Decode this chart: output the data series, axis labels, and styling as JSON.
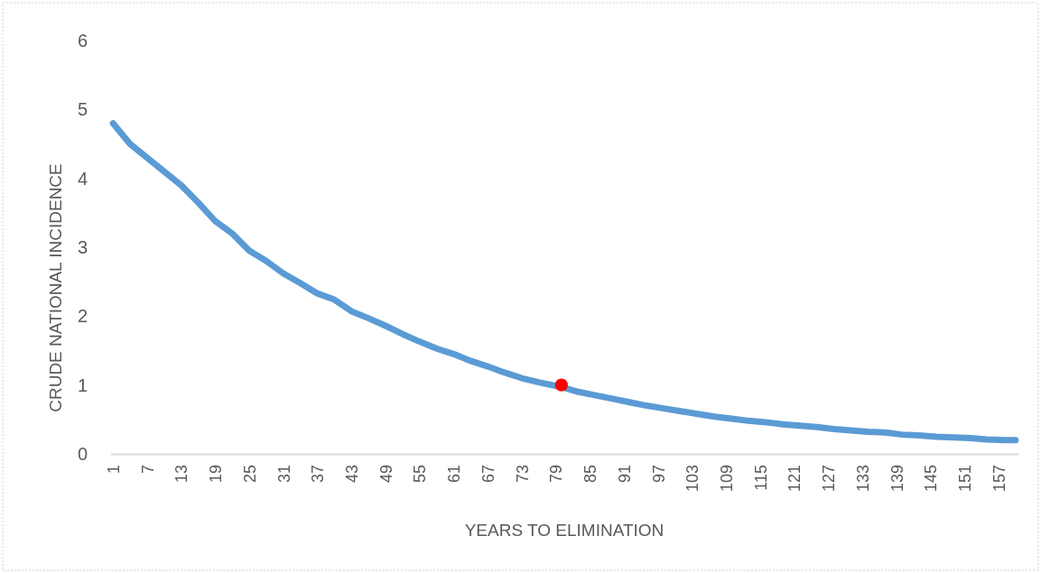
{
  "chart_data": {
    "type": "line",
    "xlabel": "YEARS TO ELIMINATION",
    "ylabel": "CRUDE NATIONAL INCIDENCE",
    "xlim": [
      0.5,
      160.5
    ],
    "xticks": [
      1,
      7,
      13,
      19,
      25,
      31,
      37,
      43,
      49,
      55,
      61,
      67,
      73,
      79,
      85,
      91,
      97,
      103,
      109,
      115,
      121,
      127,
      133,
      139,
      145,
      151,
      157
    ],
    "ylim": [
      0,
      6
    ],
    "yticks": [
      0,
      1,
      2,
      3,
      4,
      5,
      6
    ],
    "series": [
      {
        "color": "#5b9bd5",
        "marker": "none",
        "line_style": "solid",
        "x": [
          1,
          2,
          4,
          7,
          10,
          13,
          16,
          19,
          22,
          25,
          28,
          31,
          34,
          37,
          40,
          43,
          46,
          49,
          52,
          55,
          58,
          61,
          64,
          67,
          70,
          73,
          76,
          80,
          83,
          86,
          89,
          92,
          95,
          98,
          101,
          104,
          107,
          110,
          113,
          116,
          119,
          122,
          125,
          128,
          131,
          134,
          137,
          140,
          143,
          146,
          149,
          152,
          155,
          158,
          160
        ],
        "values": [
          4.8,
          4.7,
          4.5,
          4.3,
          4.1,
          3.9,
          3.65,
          3.38,
          3.2,
          2.95,
          2.8,
          2.62,
          2.48,
          2.33,
          2.24,
          2.07,
          1.97,
          1.86,
          1.74,
          1.63,
          1.53,
          1.45,
          1.35,
          1.27,
          1.18,
          1.1,
          1.04,
          0.97,
          0.9,
          0.85,
          0.8,
          0.75,
          0.7,
          0.66,
          0.62,
          0.58,
          0.54,
          0.51,
          0.48,
          0.46,
          0.43,
          0.41,
          0.39,
          0.36,
          0.34,
          0.32,
          0.31,
          0.28,
          0.27,
          0.25,
          0.24,
          0.23,
          0.21,
          0.2,
          0.2
        ]
      },
      {
        "type": "scatter",
        "color": "#ff0000",
        "marker": "circle",
        "x": [
          80
        ],
        "values": [
          1
        ]
      }
    ]
  }
}
